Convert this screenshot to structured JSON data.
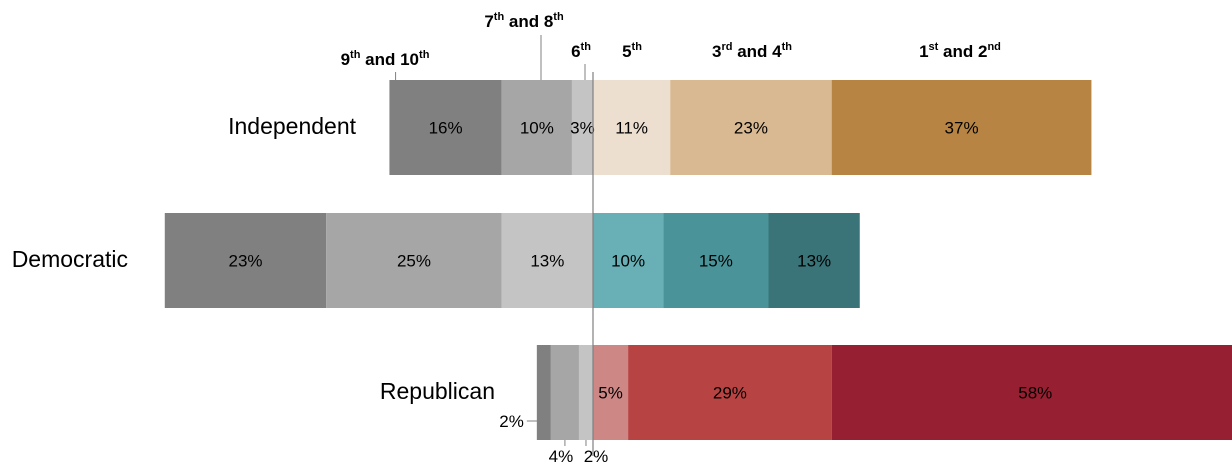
{
  "chart_data": {
    "type": "bar",
    "orientation": "horizontal-diverging-stacked",
    "segment_order": [
      "9th and 10th",
      "7th and 8th",
      "6th",
      "5th",
      "3rd and 4th",
      "1st and 2nd"
    ],
    "categories": [
      {
        "main": "9",
        "sup": "th",
        "tail": " and 10",
        "tail_sup": "th"
      },
      {
        "main": "7",
        "sup": "th",
        "tail": " and 8",
        "tail_sup": "th"
      },
      {
        "main": "6",
        "sup": "th",
        "tail": "",
        "tail_sup": ""
      },
      {
        "main": "5",
        "sup": "th",
        "tail": "",
        "tail_sup": ""
      },
      {
        "main": "3",
        "sup": "rd",
        "tail": " and 4",
        "tail_sup": "th"
      },
      {
        "main": "1",
        "sup": "st",
        "tail": " and 2",
        "tail_sup": "nd"
      }
    ],
    "series": [
      {
        "name": "Independent",
        "values": [
          16,
          10,
          3,
          11,
          23,
          37
        ],
        "labels": [
          "16%",
          "10%",
          "3%",
          "11%",
          "23%",
          "37%"
        ],
        "colors": [
          "#808080",
          "#a6a6a6",
          "#c4c4c4",
          "#ecdfd0",
          "#d9b991",
          "#b78443"
        ]
      },
      {
        "name": "Democratic",
        "values": [
          23,
          25,
          13,
          10,
          15,
          13
        ],
        "labels": [
          "23%",
          "25%",
          "13%",
          "10%",
          "15%",
          "13%"
        ],
        "colors": [
          "#808080",
          "#a6a6a6",
          "#c4c4c4",
          "#68b0b6",
          "#4a9399",
          "#3a7478"
        ]
      },
      {
        "name": "Republican",
        "values": [
          2,
          4,
          2,
          5,
          29,
          58
        ],
        "labels": [
          "2%",
          "4%",
          "2%",
          "5%",
          "29%",
          "58%"
        ],
        "colors": [
          "#808080",
          "#a6a6a6",
          "#c4c4c4",
          "#cd8785",
          "#b74443",
          "#961f31"
        ]
      }
    ],
    "xlabel": "",
    "ylabel": "",
    "grid": false,
    "legend": "category labels above top bar"
  }
}
